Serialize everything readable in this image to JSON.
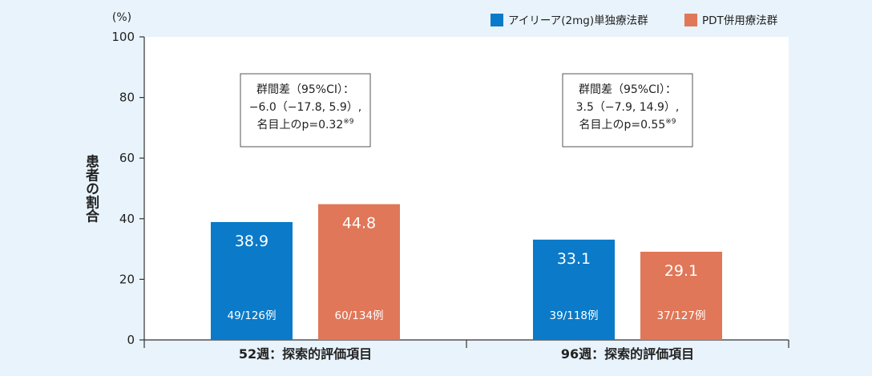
{
  "chart_data": {
    "type": "bar",
    "unit_label": "(%)",
    "ylabel": "患者の割合",
    "ylim": [
      0,
      100
    ],
    "yticks": [
      0,
      20,
      40,
      60,
      80,
      100
    ],
    "grid": false,
    "legend_position": "top-right",
    "categories": [
      "52週：探索的評価項目",
      "96週：探索的評価項目"
    ],
    "series": [
      {
        "name": "アイリーア(2mg)単独療法群",
        "color": "#0a7ac9",
        "values": [
          38.9,
          33.1
        ],
        "value_labels": [
          "38.9",
          "33.1"
        ],
        "n_labels": [
          "49/126例",
          "39/118例"
        ]
      },
      {
        "name": "PDT併用療法群",
        "color": "#e07758",
        "values": [
          44.8,
          29.1
        ],
        "value_labels": [
          "44.8",
          "29.1"
        ],
        "n_labels": [
          "60/134例",
          "37/127例"
        ]
      }
    ],
    "annotations": [
      {
        "lines": [
          "群間差（95%CI）：",
          "−6.0（−17.8, 5.9）,",
          "名目上のp=0.32"
        ],
        "footnote": "※9"
      },
      {
        "lines": [
          "群間差（95%CI）：",
          "3.5（−7.9, 14.9）,",
          "名目上のp=0.55"
        ],
        "footnote": "※9"
      }
    ]
  }
}
